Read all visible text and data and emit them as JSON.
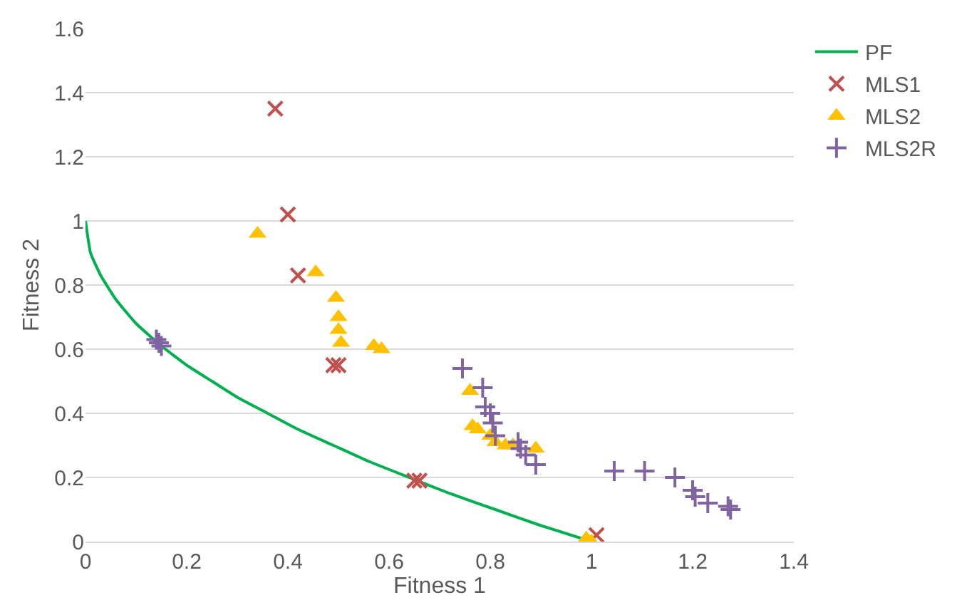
{
  "chart_data": {
    "type": "scatter",
    "xlabel": "Fitness 1",
    "ylabel": "Fitness 2",
    "xlim": [
      0,
      1.4
    ],
    "ylim": [
      0,
      1.6
    ],
    "xticks": [
      0,
      0.2,
      0.4,
      0.6,
      0.8,
      1,
      1.2,
      1.4
    ],
    "yticks": [
      0,
      0.2,
      0.4,
      0.6,
      0.8,
      1,
      1.2,
      1.4,
      1.6
    ],
    "grid": "y",
    "legend": "top right",
    "series": [
      {
        "name": "PF",
        "type": "line",
        "marker": "none",
        "color": "#00b050",
        "x": [
          0,
          0.01,
          0.03,
          0.06,
          0.1,
          0.15,
          0.2,
          0.25,
          0.3,
          0.36,
          0.42,
          0.49,
          0.56,
          0.64,
          0.72,
          0.81,
          0.9,
          1
        ],
        "values": [
          1,
          0.9,
          0.83,
          0.755,
          0.68,
          0.61,
          0.55,
          0.5,
          0.45,
          0.4,
          0.35,
          0.3,
          0.25,
          0.2,
          0.15,
          0.1,
          0.05,
          0
        ]
      },
      {
        "name": "MLS1",
        "marker": "cross",
        "color": "#c0504d",
        "x": [
          0.375,
          0.4,
          0.42,
          0.49,
          0.5,
          0.65,
          0.66,
          1,
          1.01
        ],
        "values": [
          1.35,
          1.02,
          0.83,
          0.55,
          0.55,
          0.19,
          0.19,
          null,
          0.02
        ]
      },
      {
        "name": "MLS2",
        "marker": "triangle",
        "color": "#ffc000",
        "x": [
          0.34,
          0.455,
          0.495,
          0.5,
          0.5,
          0.505,
          0.56,
          0.57,
          0.585,
          0.76,
          0.765,
          0.775,
          0.8,
          0.81,
          0.83,
          0.845,
          0.89,
          0.99,
          1
        ],
        "values": [
          0.96,
          0.84,
          0.76,
          0.7,
          0.66,
          0.62,
          null,
          0.61,
          0.6,
          0.47,
          0.36,
          0.35,
          0.33,
          0.31,
          0.3,
          0.3,
          0.29,
          0.01,
          0
        ]
      },
      {
        "name": "MLS2R",
        "marker": "plus",
        "color": "#8064a2",
        "x": [
          0.14,
          0.145,
          0.15,
          0.745,
          0.785,
          0.79,
          0.8,
          0.805,
          0.81,
          0.855,
          0.86,
          0.87,
          0.89,
          1.045,
          1.105,
          1.165,
          1.2,
          1.205,
          1.23,
          1.27,
          1.275
        ],
        "values": [
          0.63,
          0.62,
          0.61,
          0.54,
          0.48,
          0.42,
          0.4,
          0.37,
          0.33,
          0.31,
          0.29,
          0.27,
          0.24,
          0.22,
          0.22,
          0.2,
          0.16,
          0.14,
          0.12,
          0.11,
          0.1
        ]
      }
    ]
  }
}
